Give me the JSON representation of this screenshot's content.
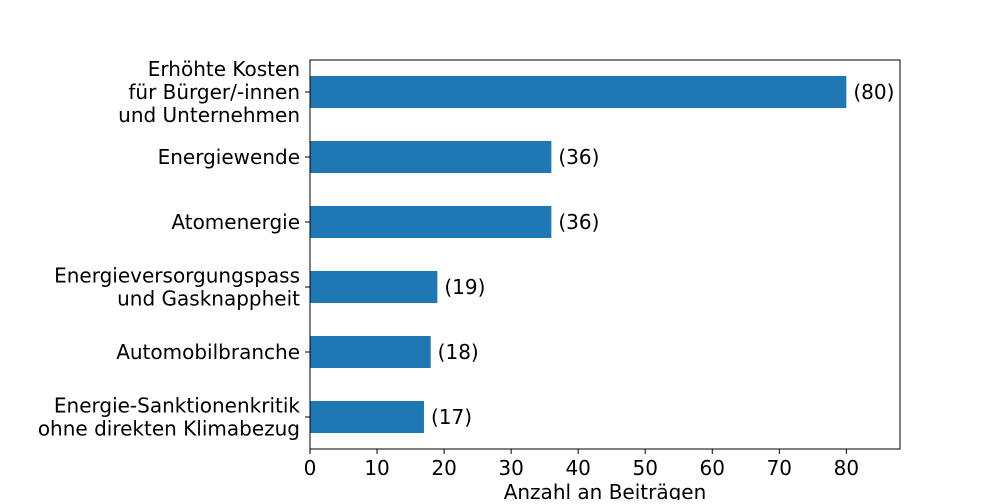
{
  "chart_data": {
    "type": "bar",
    "orientation": "horizontal",
    "categories": [
      [
        "Erhöhte Kosten",
        "für Bürger/-innen",
        "und Unternehmen"
      ],
      [
        "Energiewende"
      ],
      [
        "Atomenergie"
      ],
      [
        "Energieversorgungspass",
        "und Gasknappheit"
      ],
      [
        "Automobilbranche"
      ],
      [
        "Energie-Sanktionenkritik",
        "ohne direkten Klimabezug"
      ]
    ],
    "values": [
      80,
      36,
      36,
      19,
      18,
      17
    ],
    "data_labels": [
      "(80)",
      "(36)",
      "(36)",
      "(19)",
      "(18)",
      "(17)"
    ],
    "title": "",
    "xlabel": "Anzahl an Beiträgen",
    "ylabel": "",
    "xlim": [
      0,
      88
    ],
    "xticks": [
      0,
      10,
      20,
      30,
      40,
      50,
      60,
      70,
      80
    ],
    "grid": false,
    "legend": "none",
    "bar_color": "#1f77b4"
  }
}
